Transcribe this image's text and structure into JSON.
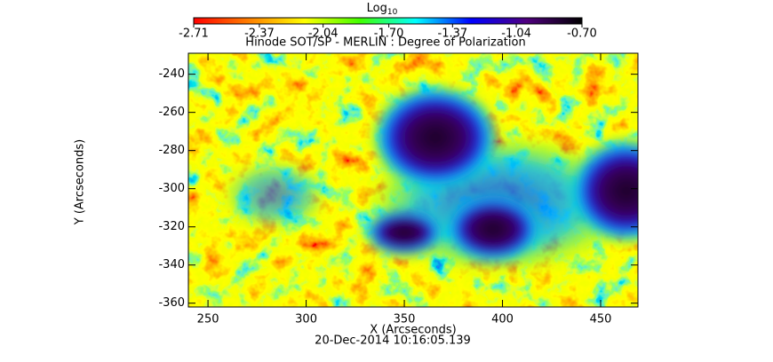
{
  "chart_data": {
    "type": "heatmap",
    "title": "Hinode SOT/SP - MERLIN : Degree of Polarization",
    "xlabel": "X (Arcseconds)",
    "ylabel": "Y (Arcseconds)",
    "annotation": "20-Dec-2014 10:16:05.139",
    "xlim": [
      240,
      469
    ],
    "xticks": [
      250,
      300,
      350,
      400,
      450
    ],
    "ylim": [
      -362,
      -229
    ],
    "yticks": [
      -240,
      -260,
      -280,
      -300,
      -320,
      -340,
      -360
    ],
    "colorbar": {
      "label": "Log",
      "label_subscript": "10",
      "lim": [
        -2.71,
        -0.7
      ],
      "ticks": [
        {
          "value": -2.71,
          "label": "-2.71"
        },
        {
          "value": -2.37,
          "label": "-2.37"
        },
        {
          "value": -2.04,
          "label": "-2.04"
        },
        {
          "value": -1.7,
          "label": "-1.70"
        },
        {
          "value": -1.37,
          "label": "-1.37"
        },
        {
          "value": -1.04,
          "label": "-1.04"
        },
        {
          "value": -0.7,
          "label": "-0.70"
        }
      ],
      "colormap": [
        "#ff0000",
        "#ff8000",
        "#ffff00",
        "#40ff00",
        "#00ffff",
        "#0000ff",
        "#50007f",
        "#000000"
      ]
    }
  }
}
